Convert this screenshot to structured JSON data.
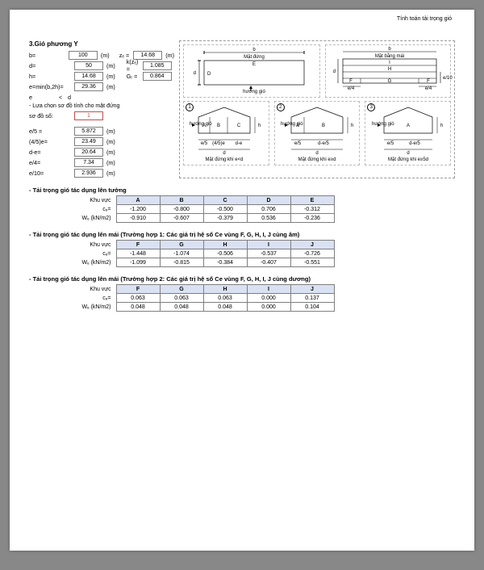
{
  "header_right": "Tính toán tải trọng gió",
  "section_title": "3.Gió phương Y",
  "params": {
    "b_lab": "b=",
    "b_val": "100",
    "b_unit": "(m)",
    "d_lab": "d=",
    "d_val": "50",
    "d_unit": "(m)",
    "h_lab": "h=",
    "h_val": "14.68",
    "h_unit": "(m)",
    "e_lab": "e=min(b,2h)=",
    "e_val": "29.36",
    "e_unit": "(m)",
    "cmp_lab": "e",
    "cmp_op": "<",
    "cmp_rhs": "d",
    "ze_lab": "zₑ =",
    "ze_val": "14.68",
    "ze_unit": "(m)",
    "kze_lab": "k(zₑ) =",
    "kze_val": "1.085",
    "gr_lab": "Gᵣ =",
    "gr_val": "0.864",
    "note1": "- Lựa chọn sơ đồ tính cho mặt đứng",
    "note2_lab": "sơ đồ số:",
    "note2_val": "1",
    "e5_lab": "e/5 =",
    "e5_val": "5.872",
    "e5_unit": "(m)",
    "f45e_lab": "(4/5)e=",
    "f45e_val": "23.49",
    "f45e_unit": "(m)",
    "de_lab": "d-e=",
    "de_val": "20.64",
    "de_unit": "(m)",
    "e4_lab": "e/4=",
    "e4_val": "7.34",
    "e4_unit": "(m)",
    "e10_lab": "e/10=",
    "e10_val": "2.936",
    "e10_unit": "(m)"
  },
  "tables": {
    "wall": {
      "title": "- Tải trọng gió tác dụng lên tường",
      "col0": "Khu vực",
      "headers": [
        "A",
        "B",
        "C",
        "D",
        "E"
      ],
      "rows": [
        {
          "lab": "cₑ=",
          "vals": [
            "-1.200",
            "-0.800",
            "-0.500",
            "0.706",
            "-0.312"
          ]
        },
        {
          "lab": "Wₑ (kN/m2)",
          "vals": [
            "-0.910",
            "-0.607",
            "-0.379",
            "0.536",
            "-0.236"
          ]
        }
      ]
    },
    "roof1": {
      "title": "- Tải trọng gió tác dụng lên mái (Trường hợp 1: Các giá trị hệ số Ce vùng F, G, H, I, J cùng âm)",
      "col0": "Khu vực",
      "headers": [
        "F",
        "G",
        "H",
        "I",
        "J"
      ],
      "rows": [
        {
          "lab": "cₑ=",
          "vals": [
            "-1.448",
            "-1.074",
            "-0.506",
            "-0.537",
            "-0.726"
          ]
        },
        {
          "lab": "Wₑ (kN/m2)",
          "vals": [
            "-1.099",
            "-0.815",
            "-0.384",
            "-0.407",
            "-0.551"
          ]
        }
      ]
    },
    "roof2": {
      "title": "- Tải trọng gió tác dụng lên mái (Trường hợp 2: Các giá trị hệ số Ce vùng F, G, H, I, J cùng dương)",
      "col0": "Khu vực",
      "headers": [
        "F",
        "G",
        "H",
        "I",
        "J"
      ],
      "rows": [
        {
          "lab": "cₑ=",
          "vals": [
            "0.063",
            "0.063",
            "0.063",
            "0.000",
            "0.137"
          ]
        },
        {
          "lab": "Wₑ (kN/m2)",
          "vals": [
            "0.048",
            "0.048",
            "0.048",
            "0.000",
            "0.104"
          ]
        }
      ]
    }
  },
  "diag": {
    "top1_title": "Mặt đứng",
    "top2_title": "Mặt bằng mái",
    "plan_labels": {
      "D": "D",
      "E": "E",
      "I": "I",
      "H": "H",
      "G": "G",
      "F": "F",
      "e4": "e/4",
      "e10": "e/10",
      "b": "b",
      "d": "d",
      "huong": "hướng gió"
    },
    "elev": {
      "A": "A",
      "B": "B",
      "C": "C",
      "e5": "e/5",
      "f45e": "(4/5)e",
      "de": "d-e",
      "d": "d",
      "h": "h",
      "note1": "Mặt đứng khi e<d",
      "note2": "Mặt đứng khi e≥d",
      "note3": "Mặt đứng khi e≥5d",
      "de5": "d-e/5"
    }
  }
}
